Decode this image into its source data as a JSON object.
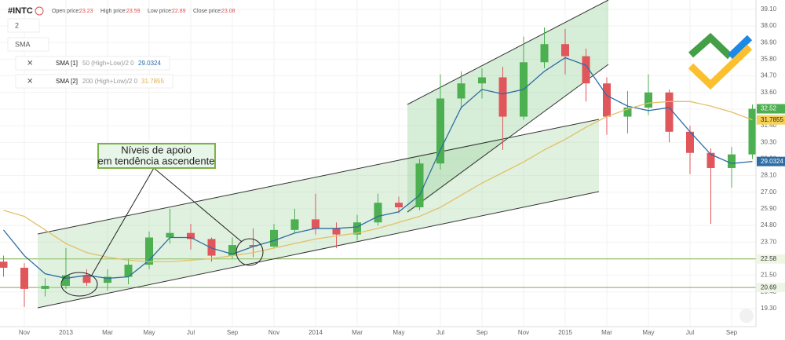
{
  "header": {
    "symbol": "#INTC",
    "open_label": "Open price:",
    "open": "23.23",
    "high_label": "High price:",
    "high": "23.59",
    "low_label": "Low price:",
    "low": "22.89",
    "close_label": "Close price:",
    "close": "23.08",
    "selector": "2",
    "indicator": "SMA",
    "sma1_name": "SMA [1]",
    "sma1_params": "50 (High+Low)/2 0",
    "sma2_name": "SMA [2]",
    "sma2_params": "200 (High+Low)/2 0"
  },
  "chart_data": {
    "type": "candlestick",
    "annotation": "Níveis de apoio em tendência ascendente",
    "x": [
      -1,
      0,
      1,
      2,
      3,
      4,
      5,
      6,
      7,
      8,
      9,
      10,
      11,
      12,
      13,
      14,
      15,
      16,
      17,
      18,
      19,
      20,
      21,
      22,
      23,
      24,
      25,
      26,
      27,
      28,
      29,
      30,
      31,
      32,
      33,
      34,
      35
    ],
    "open": [
      22.4,
      22.0,
      20.6,
      20.8,
      21.5,
      21.0,
      21.4,
      22.2,
      24.0,
      24.3,
      23.9,
      22.8,
      23.5,
      23.4,
      24.5,
      25.2,
      24.6,
      24.2,
      25.0,
      26.3,
      26.0,
      28.9,
      33.2,
      34.2,
      34.6,
      32.0,
      35.6,
      36.8,
      36.0,
      34.2,
      32.0,
      32.6,
      33.6,
      31.0,
      29.6,
      28.6,
      29.5
    ],
    "high": [
      22.8,
      22.3,
      21.3,
      23.3,
      21.9,
      21.9,
      22.6,
      24.4,
      25.9,
      24.9,
      24.0,
      24.0,
      24.6,
      24.9,
      25.9,
      26.9,
      25.0,
      25.5,
      26.9,
      26.7,
      29.2,
      34.8,
      35.0,
      35.2,
      35.3,
      37.3,
      37.9,
      37.8,
      36.5,
      34.6,
      33.7,
      34.8,
      33.8,
      31.4,
      29.9,
      30.0,
      32.8
    ],
    "low": [
      21.4,
      19.4,
      20.1,
      20.6,
      20.8,
      20.5,
      20.9,
      21.9,
      23.6,
      23.2,
      22.4,
      22.6,
      22.7,
      23.3,
      24.3,
      24.2,
      23.3,
      23.8,
      24.8,
      25.6,
      25.8,
      28.5,
      32.5,
      33.2,
      29.8,
      31.8,
      35.2,
      34.8,
      33.0,
      30.8,
      30.9,
      32.1,
      30.3,
      28.2,
      24.9,
      27.3,
      29.2
    ],
    "close": [
      22.0,
      20.6,
      20.8,
      21.5,
      21.0,
      21.4,
      22.2,
      24.0,
      24.3,
      23.9,
      22.8,
      23.5,
      23.4,
      24.5,
      25.2,
      24.6,
      24.2,
      25.0,
      26.3,
      26.0,
      28.9,
      33.2,
      34.2,
      34.6,
      32.0,
      35.6,
      36.8,
      36.0,
      34.2,
      32.0,
      32.6,
      33.6,
      31.0,
      29.6,
      28.6,
      29.5,
      32.52
    ],
    "up_color": "#4caf50",
    "down_color": "#e0565b",
    "last_color": "#4caf50",
    "series": [
      {
        "name": "SMA [1]",
        "color": "#2e6da4",
        "last_value": 29.0324,
        "values": [
          24.5,
          22.8,
          21.6,
          21.3,
          21.5,
          21.3,
          21.4,
          22.5,
          24.0,
          24.0,
          23.3,
          22.9,
          23.4,
          23.8,
          24.3,
          24.6,
          24.6,
          24.7,
          25.4,
          25.7,
          26.8,
          29.8,
          32.6,
          33.8,
          33.5,
          33.8,
          35.0,
          35.9,
          35.4,
          33.4,
          32.7,
          32.4,
          32.6,
          31.0,
          29.5,
          28.9,
          29.0324
        ]
      },
      {
        "name": "SMA [2]",
        "color": "#e3c068",
        "last_value": 31.7855,
        "values": [
          25.8,
          25.4,
          24.5,
          23.6,
          23.0,
          22.7,
          22.5,
          22.4,
          22.4,
          22.5,
          22.6,
          22.8,
          23.0,
          23.3,
          23.6,
          23.9,
          24.1,
          24.3,
          24.6,
          25.0,
          25.4,
          26.0,
          26.8,
          27.6,
          28.3,
          29.0,
          29.8,
          30.5,
          31.3,
          32.0,
          32.5,
          32.9,
          33.0,
          33.0,
          32.7,
          32.3,
          31.7855
        ]
      }
    ],
    "levels": [
      {
        "value": 22.58,
        "label": "22.58",
        "color": "#7cb342"
      },
      {
        "value": 20.69,
        "label": "20.69",
        "color": "#7cb342"
      }
    ],
    "xlim": [
      -1.17,
      35.17
    ],
    "xticks": [
      {
        "value": 0,
        "label": "Nov"
      },
      {
        "value": 2,
        "label": "2013"
      },
      {
        "value": 4,
        "label": "Mar"
      },
      {
        "value": 6,
        "label": "May"
      },
      {
        "value": 8,
        "label": "Jul"
      },
      {
        "value": 10,
        "label": "Sep"
      },
      {
        "value": 12,
        "label": "Nov"
      },
      {
        "value": 14,
        "label": "2014"
      },
      {
        "value": 16,
        "label": "Mar"
      },
      {
        "value": 18,
        "label": "May"
      },
      {
        "value": 20,
        "label": "Jul"
      },
      {
        "value": 22,
        "label": "Sep"
      },
      {
        "value": 24,
        "label": "Nov"
      },
      {
        "value": 26,
        "label": "2015"
      },
      {
        "value": 28,
        "label": "Mar"
      },
      {
        "value": 30,
        "label": "May"
      },
      {
        "value": 32,
        "label": "Jul"
      },
      {
        "value": 34,
        "label": "Sep"
      }
    ],
    "ylim": [
      18.1,
      39.72
    ],
    "yticks": [
      {
        "value": 39.1,
        "label": "39.10"
      },
      {
        "value": 38,
        "label": "38.00"
      },
      {
        "value": 36.9,
        "label": "36.90"
      },
      {
        "value": 35.8,
        "label": "35.80"
      },
      {
        "value": 34.7,
        "label": "34.70"
      },
      {
        "value": 33.6,
        "label": "33.60"
      },
      {
        "value": 32.5,
        "label": "32.50"
      },
      {
        "value": 31.4,
        "label": "31.40"
      },
      {
        "value": 30.3,
        "label": "30.30"
      },
      {
        "value": 29.2,
        "label": "29.20"
      },
      {
        "value": 28.1,
        "label": "28.10"
      },
      {
        "value": 27,
        "label": "27.00"
      },
      {
        "value": 25.9,
        "label": "25.90"
      },
      {
        "value": 24.8,
        "label": "24.80"
      },
      {
        "value": 23.7,
        "label": "23.70"
      },
      {
        "value": 22.6,
        "label": "22.60"
      },
      {
        "value": 21.5,
        "label": "21.50"
      },
      {
        "value": 20.4,
        "label": "20.40"
      },
      {
        "value": 19.3,
        "label": "19.30"
      }
    ],
    "grid": true
  }
}
